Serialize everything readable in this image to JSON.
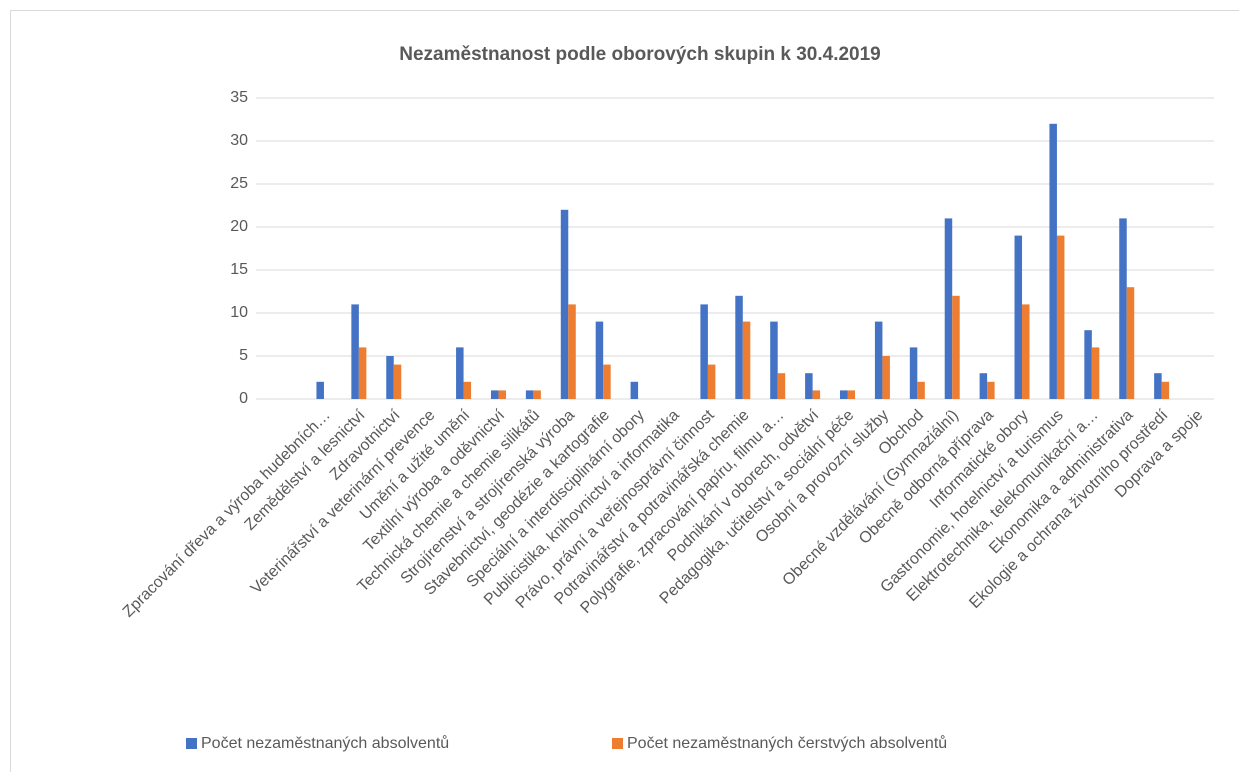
{
  "chart_data": {
    "type": "bar",
    "title": "Nezaměstnanost podle oborových skupin k 30.4.2019",
    "categories": [
      "Zpracování dřeva a výroba hudebních…",
      "Zemědělství a lesnictví",
      "Zdravotnictví",
      "Veterinářství a veterinární prevence",
      "Umění a užité umění",
      "Textilní výroba a oděvnictví",
      "Technická chemie a chemie silikátů",
      "Strojírenství a strojírenská výroba",
      "Stavebnictví, geodézie a kartografie",
      "Speciální a interdisciplinární obory",
      "Publicistika, knihovnictví a informatika",
      "Právo, právní a veřejnosprávní činnost",
      "Potravinářství a potravinářská chemie",
      "Polygrafie, zpracování papíru, filmu a…",
      "Podnikání v oborech, odvětví",
      "Pedagogika, učitelství a sociální péče",
      "Osobní a provozní služby",
      "Obchod",
      "Obecné vzdělávání (Gymnaziální)",
      "Obecně odborná příprava",
      "Informatické obory",
      "Gastronomie, hotelnictví a turismus",
      "Elektrotechnika, telekomunikační a…",
      "Ekonomika a administrativa",
      "Ekologie a ochrana životního prostředí",
      "Doprava a spoje"
    ],
    "series": [
      {
        "name": "Počet nezaměstnaných absolventů",
        "color": "#4472c4",
        "values": [
          2,
          11,
          5,
          0,
          6,
          1,
          1,
          22,
          9,
          2,
          0,
          11,
          12,
          9,
          3,
          1,
          9,
          6,
          21,
          3,
          19,
          32,
          8,
          21,
          3,
          0
        ]
      },
      {
        "name": "Počet nezaměstnaných čerstvých absolventů",
        "color": "#ed7d31",
        "values": [
          0,
          6,
          4,
          0,
          2,
          1,
          1,
          11,
          4,
          0,
          0,
          4,
          9,
          3,
          1,
          1,
          5,
          2,
          12,
          2,
          11,
          19,
          6,
          13,
          2,
          0
        ]
      }
    ],
    "ylim": [
      0,
      35
    ],
    "yticks": [
      0,
      5,
      10,
      15,
      20,
      25,
      30,
      35
    ],
    "grid": true,
    "legend": "bottom"
  }
}
